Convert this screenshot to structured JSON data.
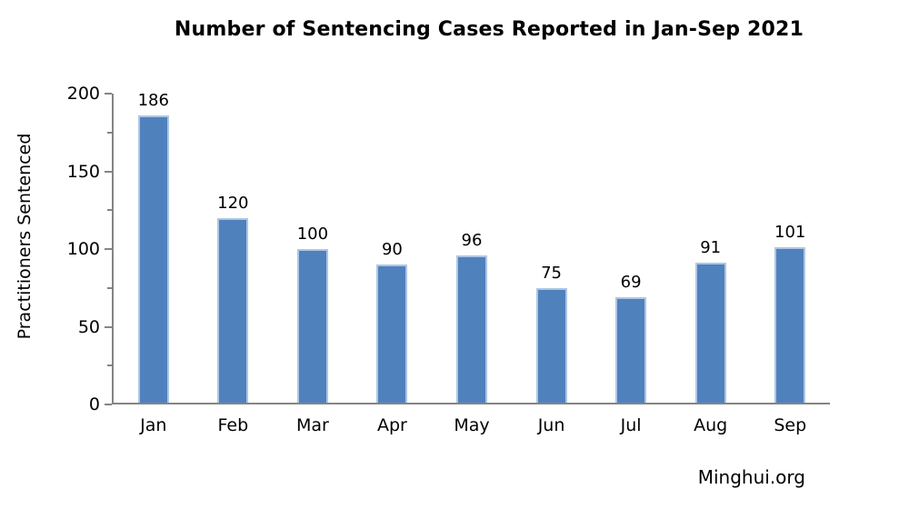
{
  "title": "Number of Sentencing Cases Reported in Jan-Sep 2021",
  "source_label": "Minghui.org",
  "chart_data": {
    "type": "bar",
    "categories": [
      "Jan",
      "Feb",
      "Mar",
      "Apr",
      "May",
      "Jun",
      "Jul",
      "Aug",
      "Sep"
    ],
    "values": [
      186,
      120,
      100,
      90,
      96,
      75,
      69,
      91,
      101
    ],
    "title": "Number of Sentencing Cases Reported in Jan-Sep 2021",
    "xlabel": "",
    "ylabel": "Practitioners Sentenced",
    "ylim": [
      0,
      200
    ],
    "y_major_ticks": [
      0,
      50,
      100,
      150,
      200
    ],
    "y_minor_ticks": [
      25,
      75,
      125,
      175
    ],
    "grid": false,
    "legend_position": "none",
    "data_labels": true,
    "bar_color": "#4F81BD",
    "bar_edge_color": "#AEC6E3",
    "axis_color": "#848484",
    "text_color": "#000000",
    "background_color": "#FFFFFF"
  }
}
